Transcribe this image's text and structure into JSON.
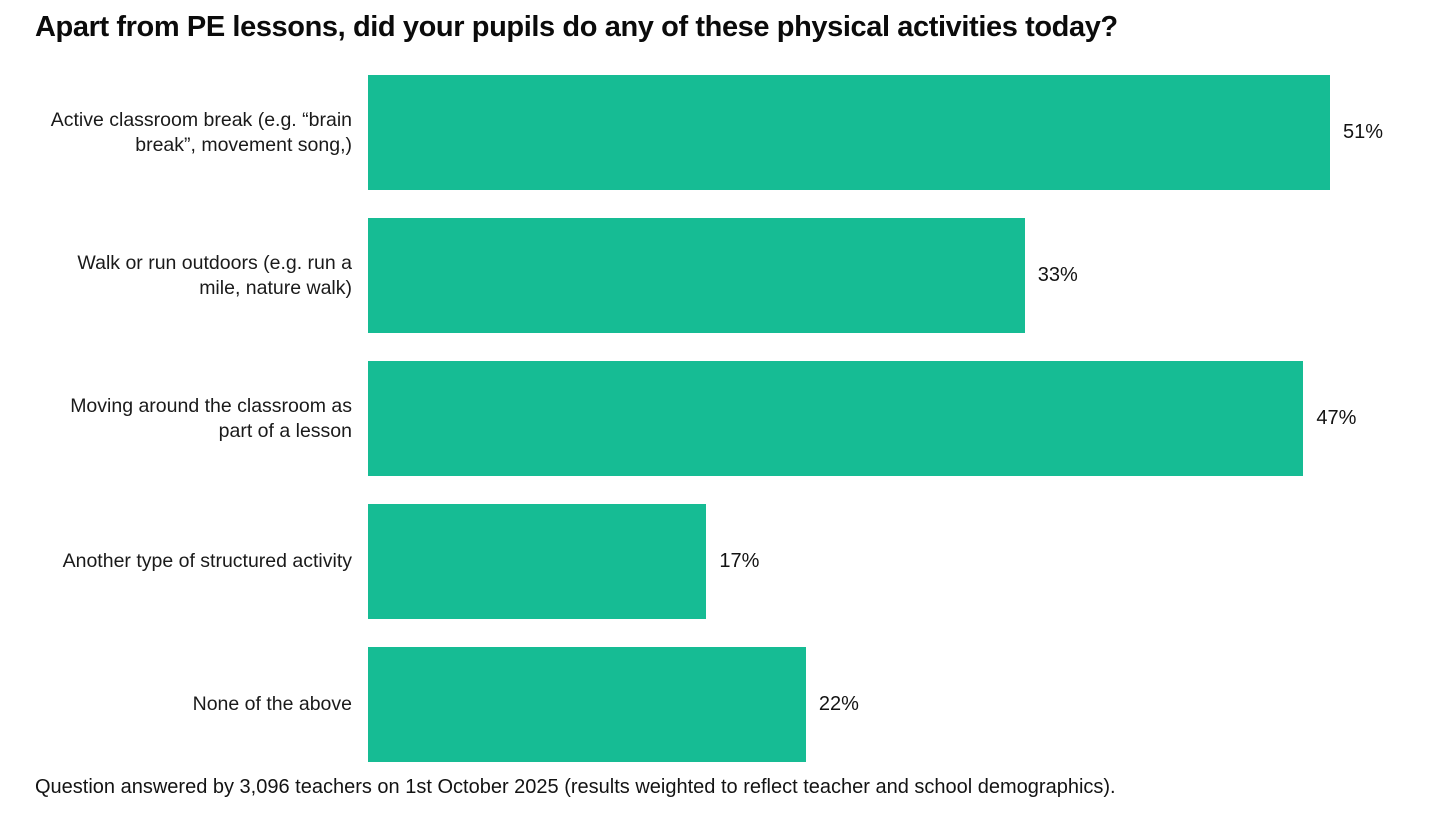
{
  "title": "Apart from PE lessons, did your pupils do any of these physical activities today?",
  "footnote": "Question answered by 3,096 teachers on 1st October 2025 (results weighted to reflect teacher and school demographics).",
  "colors": {
    "bar": "#16bc94",
    "text": "#131313",
    "background": "#ffffff"
  },
  "chart_data": {
    "type": "bar",
    "orientation": "horizontal",
    "title": "Apart from PE lessons, did your pupils do any of these physical activities today?",
    "xlabel": "",
    "ylabel": "",
    "xlim": [
      0,
      51
    ],
    "grid": false,
    "legend": false,
    "categories": [
      "Active classroom break (e.g. “brain break”, movement song,)",
      "Walk or run outdoors (e.g. run a mile, nature walk)",
      "Moving around the classroom as part of a lesson",
      "Another type of structured activity",
      "None of the above"
    ],
    "values": [
      51,
      33,
      47,
      17,
      22
    ],
    "value_labels": [
      "51%",
      "33%",
      "47%",
      "17%",
      "22%"
    ]
  }
}
